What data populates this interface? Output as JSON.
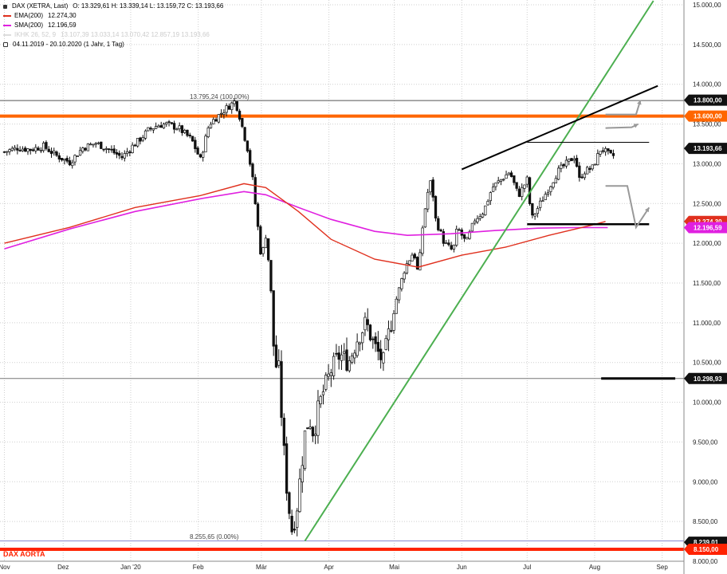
{
  "legend": {
    "title": "DAX (XETRA, Last)",
    "ohlc": "O: 13.329,61   H: 13.339,14   L: 13.159,72   C: 13.193,66",
    "ema_label": "EMA(200)",
    "ema_value": "12.274,30",
    "sma_label": "SMA(200)",
    "sma_value": "12.196,59",
    "ichimoku_label": "IKHK 26, 52, 9",
    "ichimoku_values": "13.107,39   13.033,14   13.070,42   12.857,19   13.193,66",
    "date_range": "04.11.2019 - 20.10.2020   (1 Jahr, 1 Tag)"
  },
  "colors": {
    "ema": "#e0301e",
    "sma": "#e020e0",
    "trend_up": "#4caf50",
    "resistance": "#ff6600",
    "aorta": "#ff2200",
    "candle": "#111111"
  },
  "annotations": {
    "high_label": "13.795,24 (100.00%)",
    "low_label": "8.255,65 (0.00%)",
    "aorta_label": "DAX AORTA"
  },
  "tags": {
    "t13800": "13.800,00",
    "t13600": "13.600,00",
    "tlast": "13.193,66",
    "tema": "12.274,30",
    "tsma": "12.196,59",
    "t10298": "10.298,93",
    "t8239": "8.239,01",
    "t8150": "8.150,00"
  },
  "chart_data": {
    "type": "candlestick",
    "title": "DAX (XETRA, Last)",
    "y_range": [
      8000,
      15000
    ],
    "y_ticks": [
      {
        "v": 15000,
        "label": "15.000,00"
      },
      {
        "v": 14500,
        "label": "14.500,00"
      },
      {
        "v": 14000,
        "label": "14.000,00"
      },
      {
        "v": 13500,
        "label": "13.500,00"
      },
      {
        "v": 13000,
        "label": "13.000,00"
      },
      {
        "v": 12500,
        "label": "12.500,00"
      },
      {
        "v": 12000,
        "label": "12.000,00"
      },
      {
        "v": 11500,
        "label": "11.500,00"
      },
      {
        "v": 11000,
        "label": "11.000,00"
      },
      {
        "v": 10500,
        "label": "10.500,00"
      },
      {
        "v": 10000,
        "label": "10.000,00"
      },
      {
        "v": 9500,
        "label": "9.500,00"
      },
      {
        "v": 9000,
        "label": "9.000,00"
      },
      {
        "v": 8500,
        "label": "8.500,00"
      },
      {
        "v": 8000,
        "label": "8.000,00"
      }
    ],
    "x_range": [
      0,
      290
    ],
    "x_ticks": [
      {
        "d": 0,
        "label": "Nov"
      },
      {
        "d": 27,
        "label": "Dez"
      },
      {
        "d": 58,
        "label": "Jan '20"
      },
      {
        "d": 89,
        "label": "Feb"
      },
      {
        "d": 118,
        "label": "Mär"
      },
      {
        "d": 149,
        "label": "Apr"
      },
      {
        "d": 179,
        "label": "Mai"
      },
      {
        "d": 210,
        "label": "Jun"
      },
      {
        "d": 240,
        "label": "Jul"
      },
      {
        "d": 271,
        "label": "Aug"
      },
      {
        "d": 302,
        "label": "Sep"
      }
    ],
    "close_path": [
      [
        0,
        13150
      ],
      [
        6,
        13200
      ],
      [
        12,
        13180
      ],
      [
        18,
        13220
      ],
      [
        24,
        13100
      ],
      [
        30,
        13020
      ],
      [
        36,
        13200
      ],
      [
        42,
        13260
      ],
      [
        48,
        13180
      ],
      [
        54,
        13080
      ],
      [
        58,
        13200
      ],
      [
        62,
        13300
      ],
      [
        66,
        13420
      ],
      [
        70,
        13480
      ],
      [
        74,
        13500
      ],
      [
        80,
        13450
      ],
      [
        86,
        13300
      ],
      [
        90,
        13050
      ],
      [
        94,
        13500
      ],
      [
        98,
        13600
      ],
      [
        102,
        13700
      ],
      [
        106,
        13790
      ],
      [
        108,
        13600
      ],
      [
        112,
        13150
      ],
      [
        114,
        12800
      ],
      [
        116,
        12300
      ],
      [
        118,
        11800
      ],
      [
        120,
        12100
      ],
      [
        122,
        11600
      ],
      [
        124,
        10500
      ],
      [
        126,
        10400
      ],
      [
        128,
        9500
      ],
      [
        130,
        8800
      ],
      [
        132,
        8400
      ],
      [
        134,
        8600
      ],
      [
        136,
        9100
      ],
      [
        138,
        9600
      ],
      [
        140,
        9800
      ],
      [
        142,
        9600
      ],
      [
        144,
        9900
      ],
      [
        146,
        10100
      ],
      [
        150,
        10400
      ],
      [
        154,
        10600
      ],
      [
        158,
        10500
      ],
      [
        162,
        10800
      ],
      [
        166,
        11000
      ],
      [
        170,
        10700
      ],
      [
        174,
        10500
      ],
      [
        176,
        10800
      ],
      [
        180,
        11300
      ],
      [
        184,
        11700
      ],
      [
        188,
        11900
      ],
      [
        190,
        11600
      ],
      [
        192,
        12200
      ],
      [
        194,
        12600
      ],
      [
        196,
        12800
      ],
      [
        198,
        12300
      ],
      [
        202,
        12000
      ],
      [
        206,
        11900
      ],
      [
        208,
        12200
      ],
      [
        212,
        12000
      ],
      [
        216,
        12300
      ],
      [
        220,
        12400
      ],
      [
        224,
        12700
      ],
      [
        228,
        12800
      ],
      [
        232,
        12900
      ],
      [
        236,
        12600
      ],
      [
        240,
        12800
      ],
      [
        242,
        12300
      ],
      [
        246,
        12500
      ],
      [
        250,
        12700
      ],
      [
        254,
        12900
      ],
      [
        258,
        13000
      ],
      [
        262,
        13100
      ],
      [
        264,
        12800
      ],
      [
        266,
        12900
      ],
      [
        270,
        12950
      ],
      [
        274,
        13200
      ],
      [
        278,
        13100
      ]
    ],
    "candle_range": [
      0,
      280
    ],
    "ema200": [
      [
        0,
        12000
      ],
      [
        30,
        12200
      ],
      [
        60,
        12450
      ],
      [
        90,
        12600
      ],
      [
        110,
        12750
      ],
      [
        120,
        12700
      ],
      [
        135,
        12400
      ],
      [
        150,
        12050
      ],
      [
        170,
        11800
      ],
      [
        190,
        11700
      ],
      [
        210,
        11850
      ],
      [
        230,
        11950
      ],
      [
        250,
        12100
      ],
      [
        270,
        12230
      ],
      [
        276,
        12274.3
      ]
    ],
    "sma200": [
      [
        0,
        11930
      ],
      [
        30,
        12180
      ],
      [
        60,
        12400
      ],
      [
        90,
        12560
      ],
      [
        110,
        12650
      ],
      [
        120,
        12610
      ],
      [
        135,
        12450
      ],
      [
        150,
        12300
      ],
      [
        170,
        12150
      ],
      [
        185,
        12100
      ],
      [
        205,
        12120
      ],
      [
        225,
        12160
      ],
      [
        245,
        12190
      ],
      [
        262,
        12196.59
      ],
      [
        277,
        12196.59
      ]
    ],
    "horizontal_levels": {
      "high_100": 13795.24,
      "resistance": 13600,
      "last": 13193.66,
      "support_10298": 10298.93,
      "low_0": 8255.65,
      "aorta": 8150
    },
    "trend_up_line": [
      [
        138,
        8255.65
      ],
      [
        298,
        15050
      ]
    ],
    "upper_wedge_line": [
      [
        210,
        12930
      ],
      [
        300,
        13980
      ]
    ],
    "lower_wedge_line": [
      [
        240,
        12240
      ],
      [
        296,
        12240
      ]
    ],
    "range_top_line": [
      [
        240,
        13270
      ],
      [
        296,
        13270
      ]
    ],
    "arrow_path_1": [
      [
        276,
        12720
      ],
      [
        286,
        12720
      ],
      [
        290,
        12200
      ],
      [
        296,
        12450
      ]
    ],
    "arrow_path_2": [
      [
        276,
        13450
      ],
      [
        288,
        13460
      ],
      [
        291,
        13500
      ]
    ],
    "arrow_path_3": [
      [
        276,
        13620
      ],
      [
        290,
        13620
      ],
      [
        292,
        13800
      ]
    ]
  }
}
